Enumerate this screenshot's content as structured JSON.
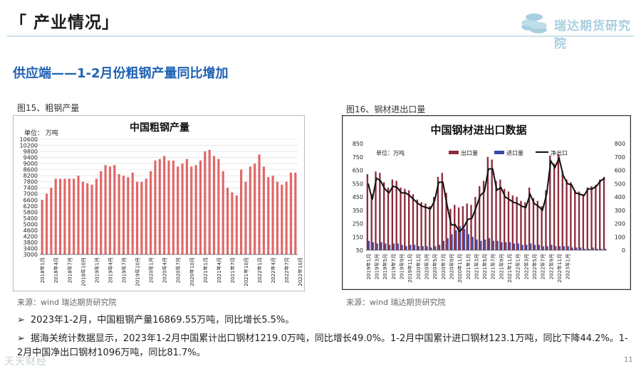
{
  "header": {
    "title": "「 产业情况」",
    "logo_text": "瑞达期货研究院"
  },
  "subtitle": "供应端——1-2月份粗钢产量同比增加",
  "figures": {
    "left_caption": "图15、粗钢产量",
    "right_caption": "图16、钢材进出口量",
    "left_source": "来源：wind    瑞达期货研究院",
    "right_source": "来源：wind    瑞达期货研究院"
  },
  "bullets": [
    "2023年1-2月，中国粗钢产量16869.55万吨，同比增长5.5%。",
    "据海关统计数据显示，2023年1-2月中国累计出口钢材1219.0万吨，同比增长49.0%。1-2月中国累计进口钢材123.1万吨，同比下降44.2%。1-2月中国净出口钢材1096万吨，同比81.7%。"
  ],
  "bullet_marker": "➢",
  "page_number": "11",
  "watermark": "天天财经",
  "colors": {
    "bar_red": "#e06868",
    "export_bar": "#8b2b3b",
    "import_bar": "#3a4aa8",
    "net_line": "#111111",
    "title_blue": "#1f62b3",
    "grid": "#d9d9d9"
  },
  "chart_data": [
    {
      "type": "bar",
      "title": "中国粗钢产量",
      "unit_label": "单位：  万吨",
      "ylim": [
        3000,
        10600
      ],
      "yticks": [
        3000,
        3400,
        3800,
        4200,
        4600,
        5000,
        5400,
        5800,
        6200,
        6600,
        7000,
        7400,
        7800,
        8200,
        8600,
        9000,
        9400,
        9800,
        10200,
        10600
      ],
      "xtick_labels": [
        "2018年1月",
        "2018年4月",
        "2018年7月",
        "2018年10月",
        "2019年1月",
        "2019年4月",
        "2019年7月",
        "2019年10月",
        "2020年1月",
        "2020年4月",
        "2020年7月",
        "2020年10月",
        "2021年1月",
        "2021年4月",
        "2021年7月",
        "2021年10月",
        "2022年1月",
        "2022年4月",
        "2022年7月",
        "2022年10月",
        "2023年1月"
      ],
      "values": [
        6600,
        7000,
        7400,
        8000,
        8000,
        8000,
        8000,
        8000,
        8200,
        7800,
        7700,
        7600,
        8000,
        8500,
        8900,
        8800,
        8900,
        8300,
        8200,
        8100,
        8400,
        7800,
        7800,
        8000,
        8500,
        9200,
        9300,
        9500,
        9200,
        9200,
        8800,
        9000,
        9300,
        8800,
        8900,
        9200,
        9800,
        9900,
        9500,
        9300,
        8500,
        7400,
        7100,
        6900,
        8600,
        7800,
        8800,
        9000,
        9600,
        8800,
        8100,
        8200,
        7800,
        7600,
        7800,
        8400,
        8400
      ]
    },
    {
      "type": "bar+line",
      "title": "中国钢材进出口数据",
      "unit_label": "单位：万吨",
      "legend": [
        "出口量",
        "进口量",
        "净出口"
      ],
      "left_axis": {
        "ylim": [
          50,
          850
        ],
        "ticks": [
          50,
          150,
          250,
          350,
          450,
          550,
          650,
          750,
          850
        ]
      },
      "right_axis": {
        "ylim": [
          0,
          800
        ],
        "ticks": [
          0,
          100,
          200,
          300,
          400,
          500,
          600,
          700,
          800
        ]
      },
      "xtick_labels": [
        "2019年1月",
        "2019年3月",
        "2019年5月",
        "2019年7月",
        "2019年9月",
        "2019年11月",
        "2020年1月",
        "2020年3月",
        "2020年5月",
        "2020年7月",
        "2020年9月",
        "2020年11月",
        "2021年1月",
        "2021年3月",
        "2021年5月",
        "2021年7月",
        "2021年9月",
        "2021年11月",
        "2022年1月",
        "2022年3月",
        "2022年5月",
        "2022年7月",
        "2022年9月",
        "2022年11月",
        "2023年1月"
      ],
      "series": [
        {
          "name": "出口量",
          "values": [
            620,
            470,
            640,
            630,
            560,
            520,
            580,
            570,
            520,
            510,
            500,
            470,
            430,
            410,
            400,
            380,
            450,
            600,
            630,
            480,
            360,
            390,
            370,
            380,
            400,
            390,
            450,
            530,
            570,
            750,
            730,
            570,
            580,
            510,
            490,
            460,
            450,
            420,
            410,
            520,
            440,
            420,
            380,
            500,
            760,
            700,
            770,
            640,
            580,
            560,
            500,
            490,
            470,
            520,
            530,
            540,
            580,
            600
          ]
        },
        {
          "name": "进口量",
          "values": [
            120,
            110,
            100,
            110,
            100,
            90,
            100,
            100,
            90,
            80,
            90,
            90,
            80,
            80,
            80,
            70,
            80,
            90,
            120,
            140,
            170,
            200,
            230,
            210,
            170,
            150,
            130,
            120,
            130,
            140,
            120,
            120,
            110,
            110,
            110,
            100,
            100,
            90,
            90,
            100,
            90,
            90,
            80,
            80,
            90,
            80,
            80,
            80,
            80,
            70,
            70,
            70,
            60,
            60,
            70,
            60,
            60,
            60
          ]
        },
        {
          "name": "净出口",
          "values": [
            500,
            380,
            540,
            520,
            460,
            430,
            480,
            470,
            430,
            430,
            410,
            380,
            350,
            330,
            320,
            310,
            370,
            510,
            510,
            340,
            190,
            190,
            140,
            170,
            230,
            240,
            320,
            410,
            440,
            610,
            610,
            450,
            470,
            400,
            380,
            360,
            350,
            330,
            320,
            420,
            350,
            330,
            300,
            420,
            670,
            620,
            690,
            560,
            500,
            490,
            430,
            420,
            410,
            460,
            460,
            480,
            520,
            540
          ]
        }
      ]
    }
  ]
}
